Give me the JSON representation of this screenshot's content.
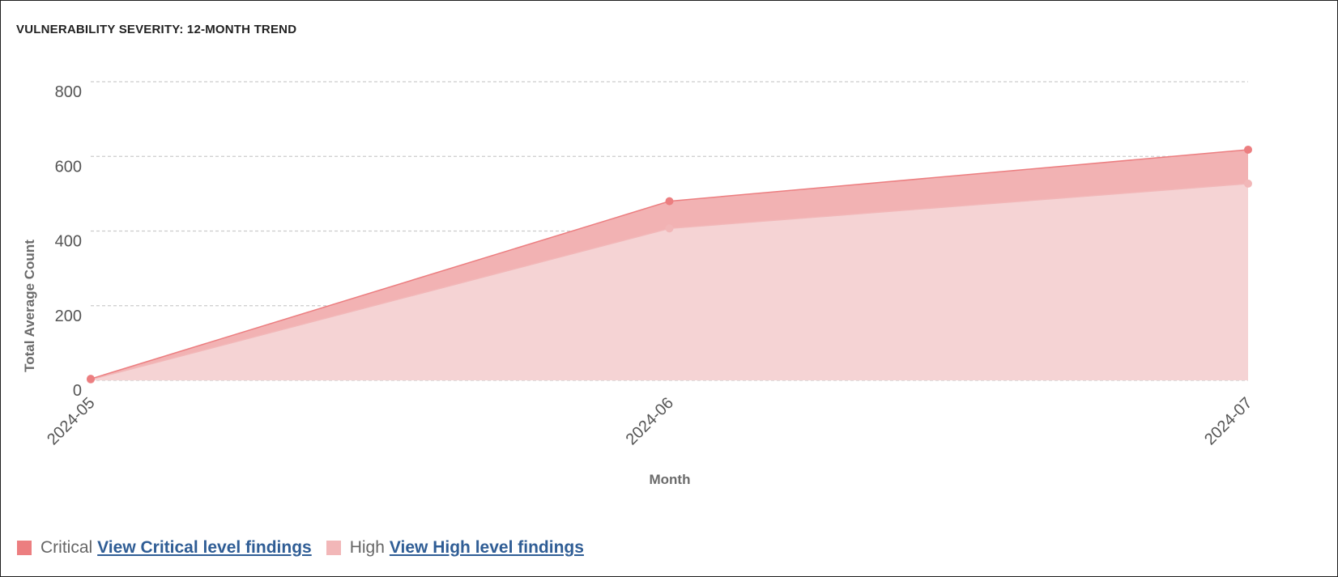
{
  "title": "VULNERABILITY SEVERITY: 12-MONTH TREND",
  "colors": {
    "critical": "#ec7e80",
    "critical_fill": "#f2b2b3",
    "high": "#f2b7b8",
    "high_fill": "#f5d3d4",
    "grid": "#cccccc",
    "link": "#2f5d95"
  },
  "legend": [
    {
      "label": "Critical",
      "link": "View Critical level findings"
    },
    {
      "label": "High",
      "link": "View High level findings"
    }
  ],
  "chart_data": {
    "type": "area",
    "stacked": true,
    "x": [
      "2024-05",
      "2024-06",
      "2024-07"
    ],
    "series": [
      {
        "name": "Critical",
        "values": [
          2,
          73,
          91
        ]
      },
      {
        "name": "High",
        "values": [
          2,
          407,
          527
        ]
      }
    ],
    "totals": [
      4,
      480,
      618
    ],
    "xlabel": "Month",
    "ylabel": "Total Average Count",
    "ylim": [
      0,
      800
    ],
    "yticks": [
      0,
      200,
      400,
      600,
      800
    ],
    "grid": true,
    "legend_position": "bottom-left"
  }
}
